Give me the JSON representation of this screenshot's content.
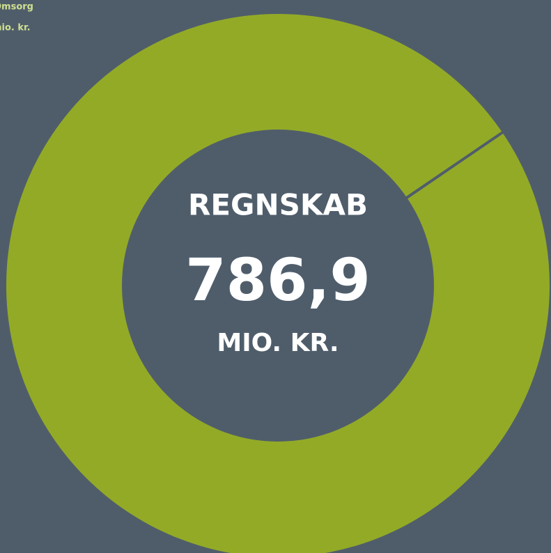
{
  "chart_data": {
    "type": "donut",
    "categories": [
      "Omsorg"
    ],
    "unit_label": "mio. kr.",
    "values": [
      786.9
    ],
    "value_labels": [
      "786,9"
    ],
    "color": "#93aa27",
    "center_title": "REGNSKAB",
    "center_unit": "MIO. KR."
  }
}
